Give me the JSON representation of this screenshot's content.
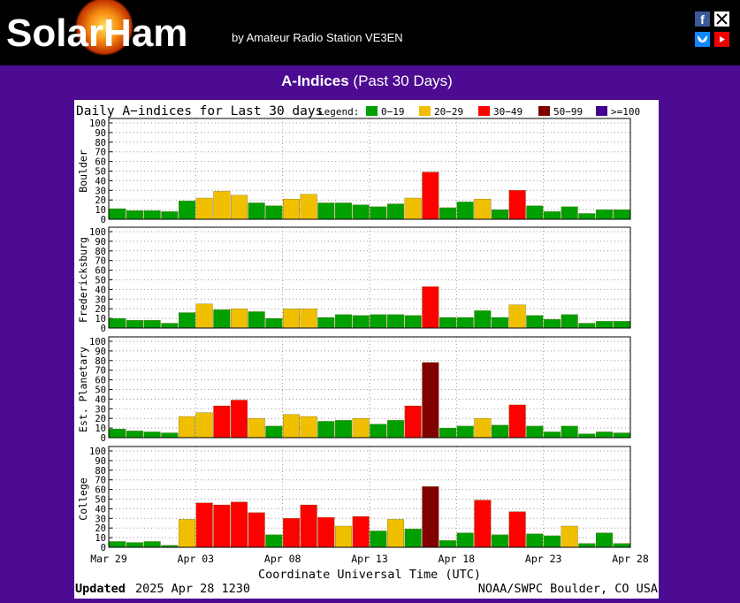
{
  "header": {
    "logo": "SolarHam",
    "tagline": "by Amateur Radio Station VE3EN"
  },
  "page_title": {
    "bold": "A-Indices",
    "rest": "(Past 30 Days)"
  },
  "figure": {
    "title": "Daily A−indices for Last 30 days",
    "legend_label": "Legend:",
    "legend": [
      {
        "label": "0−19",
        "color": "#00a000"
      },
      {
        "label": "20−29",
        "color": "#f0c000"
      },
      {
        "label": "30−49",
        "color": "#ff0000"
      },
      {
        "label": "50−99",
        "color": "#800000"
      },
      {
        "label": ">=100",
        "color": "#400090"
      }
    ],
    "xlim": [
      0,
      30
    ],
    "xticks": [
      {
        "value": 0,
        "label": "Mar 29"
      },
      {
        "value": 5,
        "label": "Apr 03"
      },
      {
        "value": 10,
        "label": "Apr 08"
      },
      {
        "value": 15,
        "label": "Apr 13"
      },
      {
        "value": 20,
        "label": "Apr 18"
      },
      {
        "value": 25,
        "label": "Apr 23"
      },
      {
        "value": 30,
        "label": "Apr 28"
      }
    ],
    "xlabel": "Coordinate Universal Time (UTC)",
    "updated_label": "Updated",
    "updated": "2025 Apr 28 1230",
    "source": "NOAA/SWPC Boulder, CO USA"
  },
  "chart_data": [
    {
      "type": "bar",
      "ylabel": "Boulder",
      "ylim": [
        0,
        100
      ],
      "yticks": [
        0,
        10,
        20,
        30,
        40,
        50,
        60,
        70,
        80,
        90,
        100
      ],
      "grid": true,
      "values": [
        11,
        9,
        9,
        8,
        19,
        22,
        29,
        25,
        17,
        14,
        21,
        26,
        17,
        17,
        15,
        13,
        16,
        22,
        49,
        12,
        18,
        21,
        10,
        30,
        14,
        8,
        13,
        6,
        10,
        10
      ],
      "colors": [
        "#00a000",
        "#00a000",
        "#00a000",
        "#00a000",
        "#00a000",
        "#f0c000",
        "#f0c000",
        "#f0c000",
        "#00a000",
        "#00a000",
        "#f0c000",
        "#f0c000",
        "#00a000",
        "#00a000",
        "#00a000",
        "#00a000",
        "#00a000",
        "#f0c000",
        "#ff0000",
        "#00a000",
        "#00a000",
        "#f0c000",
        "#00a000",
        "#ff0000",
        "#00a000",
        "#00a000",
        "#00a000",
        "#00a000",
        "#00a000",
        "#00a000"
      ]
    },
    {
      "type": "bar",
      "ylabel": "Fredericksburg",
      "ylim": [
        0,
        100
      ],
      "yticks": [
        0,
        10,
        20,
        30,
        40,
        50,
        60,
        70,
        80,
        90,
        100
      ],
      "grid": true,
      "values": [
        10,
        8,
        8,
        5,
        16,
        25,
        19,
        20,
        17,
        10,
        20,
        20,
        11,
        14,
        13,
        14,
        14,
        13,
        43,
        11,
        11,
        18,
        11,
        24,
        13,
        9,
        14,
        5,
        7,
        7
      ],
      "colors": [
        "#00a000",
        "#00a000",
        "#00a000",
        "#00a000",
        "#00a000",
        "#f0c000",
        "#00a000",
        "#f0c000",
        "#00a000",
        "#00a000",
        "#f0c000",
        "#f0c000",
        "#00a000",
        "#00a000",
        "#00a000",
        "#00a000",
        "#00a000",
        "#00a000",
        "#ff0000",
        "#00a000",
        "#00a000",
        "#00a000",
        "#00a000",
        "#f0c000",
        "#00a000",
        "#00a000",
        "#00a000",
        "#00a000",
        "#00a000",
        "#00a000"
      ]
    },
    {
      "type": "bar",
      "ylabel": "Est. Planetary",
      "ylim": [
        0,
        100
      ],
      "yticks": [
        0,
        10,
        20,
        30,
        40,
        50,
        60,
        70,
        80,
        90,
        100
      ],
      "grid": true,
      "values": [
        9,
        7,
        6,
        5,
        22,
        26,
        33,
        39,
        20,
        12,
        24,
        22,
        17,
        18,
        20,
        14,
        18,
        33,
        78,
        10,
        12,
        20,
        13,
        34,
        12,
        6,
        12,
        4,
        6,
        5
      ],
      "colors": [
        "#00a000",
        "#00a000",
        "#00a000",
        "#00a000",
        "#f0c000",
        "#f0c000",
        "#ff0000",
        "#ff0000",
        "#f0c000",
        "#00a000",
        "#f0c000",
        "#f0c000",
        "#00a000",
        "#00a000",
        "#f0c000",
        "#00a000",
        "#00a000",
        "#ff0000",
        "#800000",
        "#00a000",
        "#00a000",
        "#f0c000",
        "#00a000",
        "#ff0000",
        "#00a000",
        "#00a000",
        "#00a000",
        "#00a000",
        "#00a000",
        "#00a000"
      ]
    },
    {
      "type": "bar",
      "ylabel": "College",
      "ylim": [
        0,
        100
      ],
      "yticks": [
        0,
        10,
        20,
        30,
        40,
        50,
        60,
        70,
        80,
        90,
        100
      ],
      "grid": true,
      "values": [
        6,
        5,
        6,
        2,
        29,
        46,
        44,
        47,
        36,
        13,
        30,
        44,
        31,
        22,
        32,
        17,
        29,
        19,
        63,
        7,
        15,
        49,
        13,
        37,
        14,
        12,
        22,
        4,
        15,
        4
      ],
      "colors": [
        "#00a000",
        "#00a000",
        "#00a000",
        "#00a000",
        "#f0c000",
        "#ff0000",
        "#ff0000",
        "#ff0000",
        "#ff0000",
        "#00a000",
        "#ff0000",
        "#ff0000",
        "#ff0000",
        "#f0c000",
        "#ff0000",
        "#00a000",
        "#f0c000",
        "#00a000",
        "#800000",
        "#00a000",
        "#00a000",
        "#ff0000",
        "#00a000",
        "#ff0000",
        "#00a000",
        "#00a000",
        "#f0c000",
        "#00a000",
        "#00a000",
        "#00a000"
      ]
    }
  ]
}
